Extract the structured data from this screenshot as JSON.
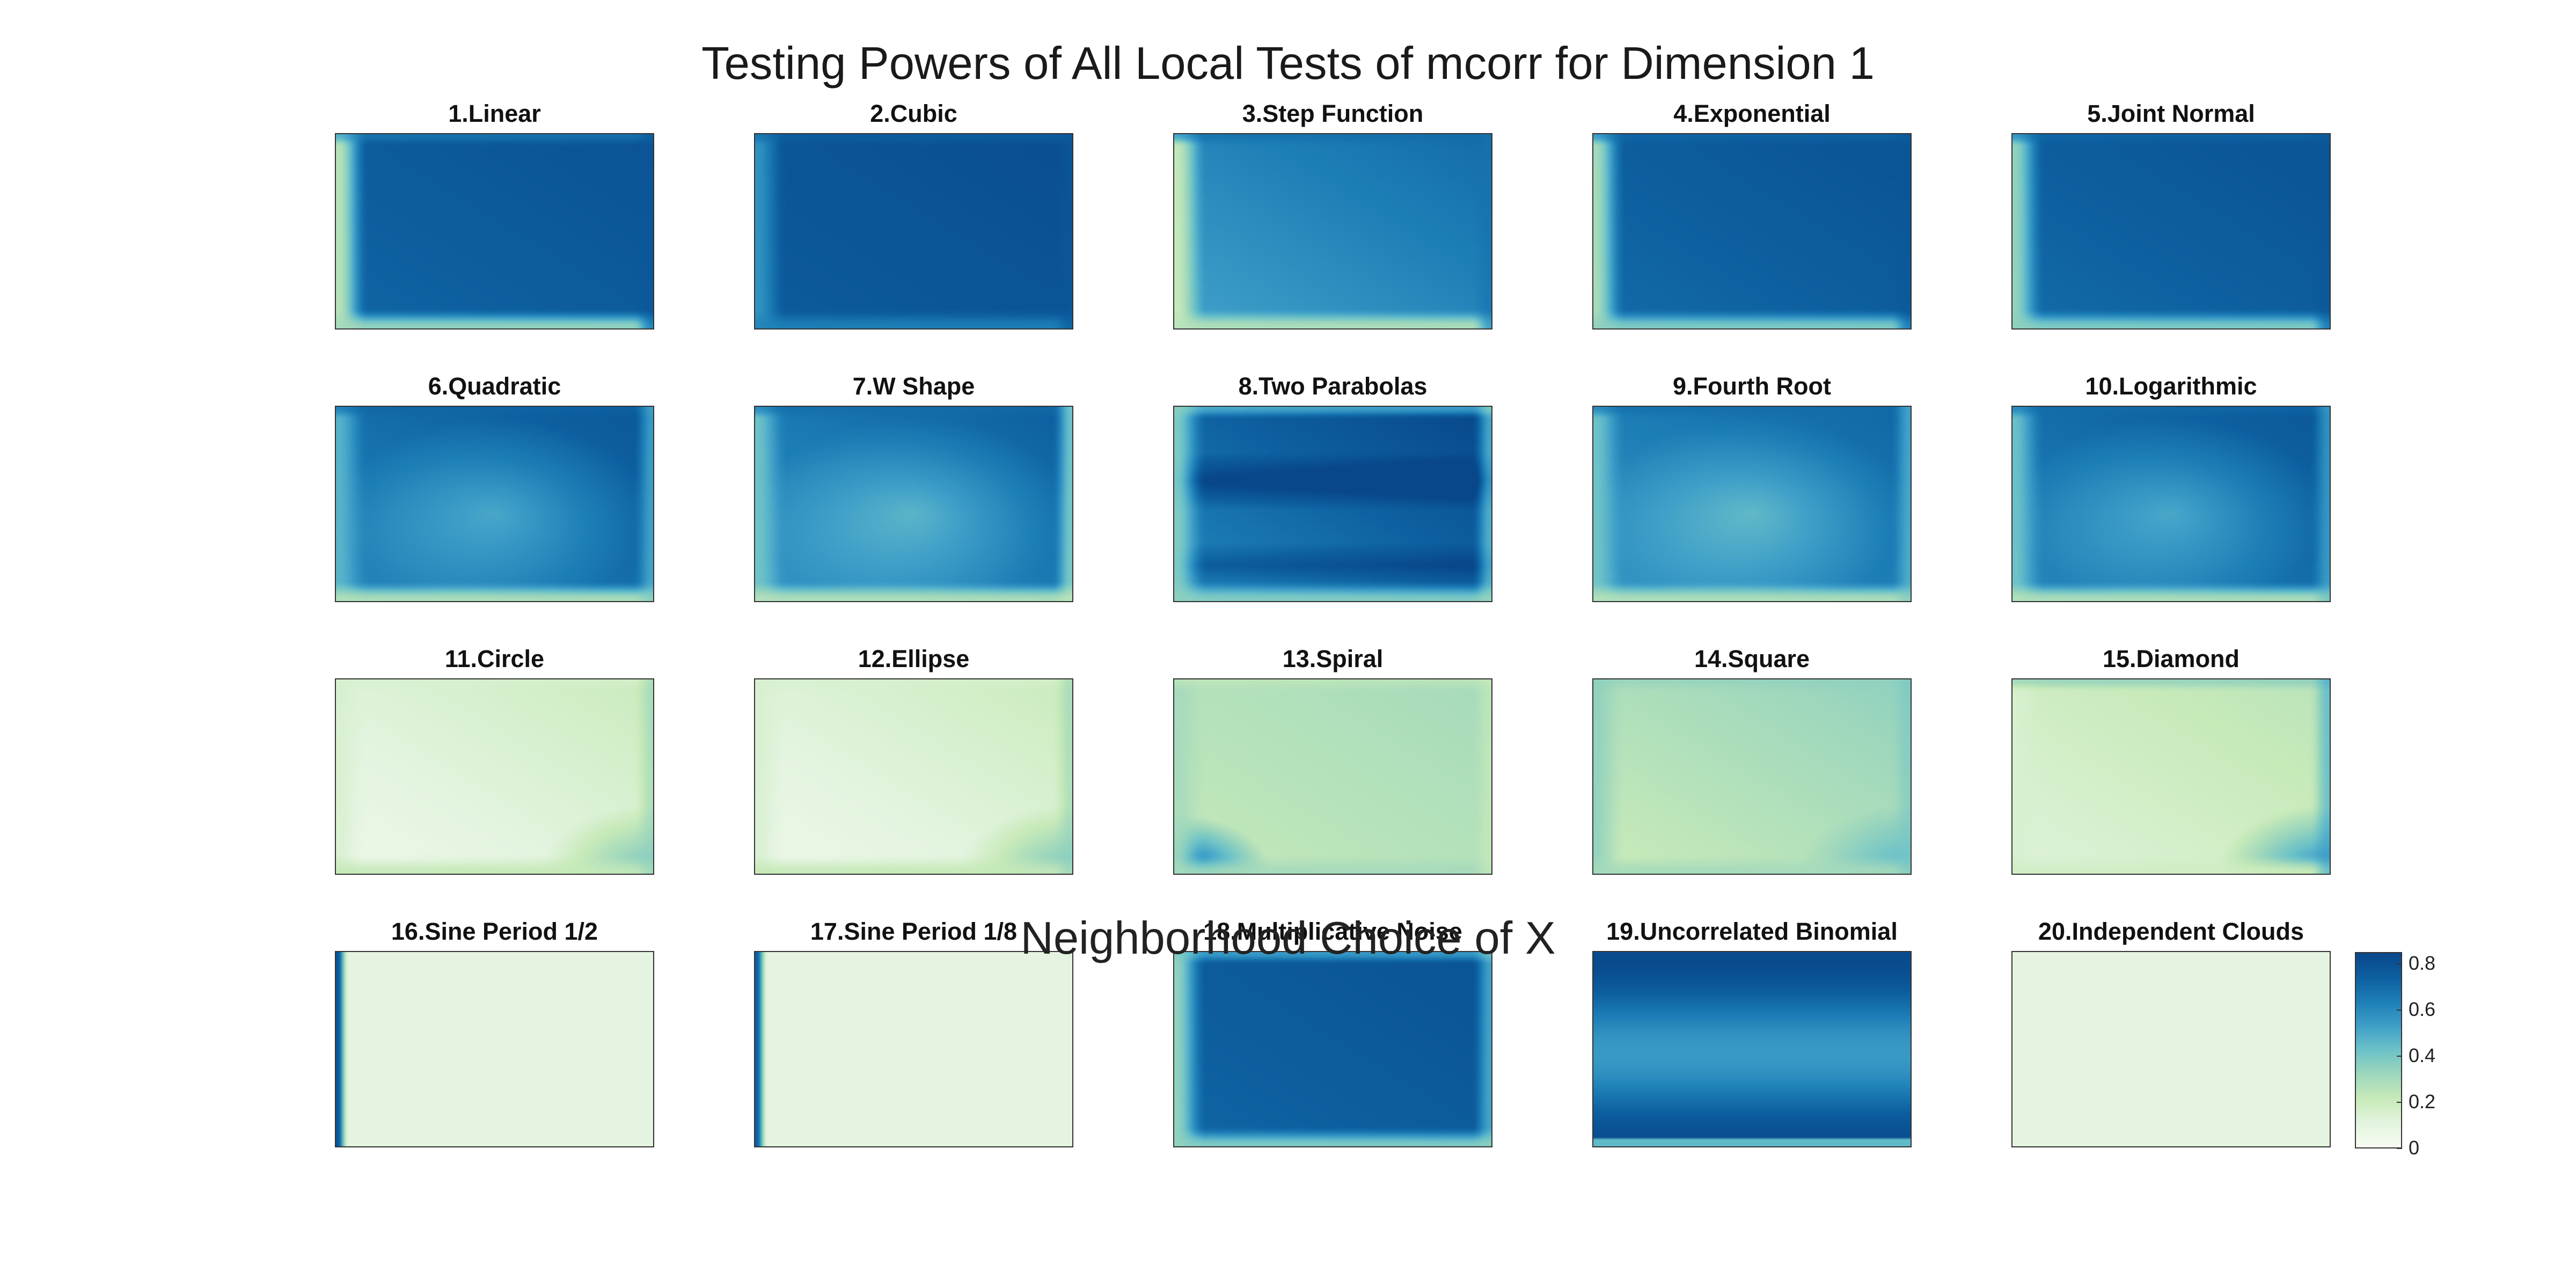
{
  "title": "Testing Powers of All Local Tests of mcorr for Dimension 1",
  "xlabel": "Neighborhood Choice of X",
  "colormap": [
    "#f7fcf0",
    "#e3f4df",
    "#c7eab9",
    "#9ed7bc",
    "#6cc2c8",
    "#3f9fc8",
    "#1d7eb6",
    "#0d5fa0",
    "#08478a"
  ],
  "colorbar": {
    "min": 0,
    "max": 0.85,
    "ticks": [
      "0",
      "0.2",
      "0.4",
      "0.6",
      "0.8"
    ]
  },
  "chart_data": {
    "type": "heatmap",
    "title": "Testing Powers of All Local Tests of mcorr for Dimension 1",
    "xlabel": "Neighborhood Choice of X",
    "value_range": [
      0,
      0.85
    ],
    "panels": [
      {
        "title": "1.Linear",
        "base": 0.72,
        "peak": 0.8,
        "edge_left": 0.2,
        "edge_bottom": 0.3,
        "edge_top": 0.62,
        "edge_right": 0.78,
        "pattern": "uniform"
      },
      {
        "title": "2.Cubic",
        "base": 0.76,
        "peak": 0.82,
        "edge_left": 0.55,
        "edge_bottom": 0.62,
        "edge_top": 0.72,
        "edge_right": 0.78,
        "pattern": "uniform"
      },
      {
        "title": "3.Step Function",
        "base": 0.52,
        "peak": 0.7,
        "edge_left": 0.18,
        "edge_bottom": 0.25,
        "edge_top": 0.7,
        "edge_right": 0.68,
        "pattern": "uniform"
      },
      {
        "title": "4.Exponential",
        "base": 0.7,
        "peak": 0.8,
        "edge_left": 0.25,
        "edge_bottom": 0.35,
        "edge_top": 0.7,
        "edge_right": 0.78,
        "pattern": "uniform"
      },
      {
        "title": "5.Joint Normal",
        "base": 0.7,
        "peak": 0.8,
        "edge_left": 0.3,
        "edge_bottom": 0.35,
        "edge_top": 0.7,
        "edge_right": 0.78,
        "pattern": "uniform"
      },
      {
        "title": "6.Quadratic",
        "base": 0.6,
        "peak": 0.78,
        "edge_left": 0.45,
        "edge_bottom": 0.25,
        "edge_top": 0.72,
        "edge_right": 0.4,
        "pattern": "center_dip"
      },
      {
        "title": "7.W Shape",
        "base": 0.55,
        "peak": 0.75,
        "edge_left": 0.4,
        "edge_bottom": 0.25,
        "edge_top": 0.7,
        "edge_right": 0.22,
        "pattern": "center_dip"
      },
      {
        "title": "8.Two Parabolas",
        "base": 0.6,
        "peak": 0.85,
        "edge_left": 0.35,
        "edge_bottom": 0.35,
        "edge_top": 0.35,
        "edge_right": 0.3,
        "pattern": "band"
      },
      {
        "title": "9.Fourth Root",
        "base": 0.55,
        "peak": 0.72,
        "edge_left": 0.4,
        "edge_bottom": 0.25,
        "edge_top": 0.7,
        "edge_right": 0.4,
        "pattern": "center_dip"
      },
      {
        "title": "10.Logarithmic",
        "base": 0.6,
        "peak": 0.78,
        "edge_left": 0.4,
        "edge_bottom": 0.25,
        "edge_top": 0.7,
        "edge_right": 0.45,
        "pattern": "center_dip"
      },
      {
        "title": "11.Circle",
        "base": 0.05,
        "peak": 0.2,
        "edge_left": 0.15,
        "edge_bottom": 0.22,
        "edge_top": 0.15,
        "edge_right": 0.35,
        "pattern": "corner_br"
      },
      {
        "title": "12.Ellipse",
        "base": 0.05,
        "peak": 0.2,
        "edge_left": 0.15,
        "edge_bottom": 0.22,
        "edge_top": 0.15,
        "edge_right": 0.35,
        "pattern": "corner_br"
      },
      {
        "title": "13.Spiral",
        "base": 0.22,
        "peak": 0.3,
        "edge_left": 0.3,
        "edge_bottom": 0.3,
        "edge_top": 0.22,
        "edge_right": 0.2,
        "pattern": "corner_bl"
      },
      {
        "title": "14.Square",
        "base": 0.2,
        "peak": 0.35,
        "edge_left": 0.35,
        "edge_bottom": 0.3,
        "edge_top": 0.35,
        "edge_right": 0.4,
        "pattern": "corner_br"
      },
      {
        "title": "15.Diamond",
        "base": 0.12,
        "peak": 0.25,
        "edge_left": 0.15,
        "edge_bottom": 0.18,
        "edge_top": 0.4,
        "edge_right": 0.55,
        "pattern": "corner_br"
      },
      {
        "title": "16.Sine Period 1/2",
        "base": 0.1,
        "peak": 0.12,
        "edge_left": 0.8,
        "edge_bottom": 0.1,
        "edge_top": 0.1,
        "edge_right": 0.1,
        "pattern": "left_strip"
      },
      {
        "title": "17.Sine Period 1/8",
        "base": 0.1,
        "peak": 0.12,
        "edge_left": 0.75,
        "edge_bottom": 0.1,
        "edge_top": 0.1,
        "edge_right": 0.1,
        "pattern": "left_strip"
      },
      {
        "title": "18.Multiplicative Noise",
        "base": 0.72,
        "peak": 0.8,
        "edge_left": 0.3,
        "edge_bottom": 0.35,
        "edge_top": 0.4,
        "edge_right": 0.35,
        "pattern": "uniform"
      },
      {
        "title": "19.Uncorrelated Binomial",
        "base": 0.8,
        "peak": 0.85,
        "edge_left": 0.8,
        "edge_bottom": 0.8,
        "edge_top": 0.8,
        "edge_right": 0.8,
        "pattern": "horizontal_bands"
      },
      {
        "title": "20.Independent Clouds",
        "base": 0.1,
        "peak": 0.1,
        "edge_left": 0.1,
        "edge_bottom": 0.1,
        "edge_top": 0.1,
        "edge_right": 0.1,
        "pattern": "uniform"
      }
    ]
  }
}
